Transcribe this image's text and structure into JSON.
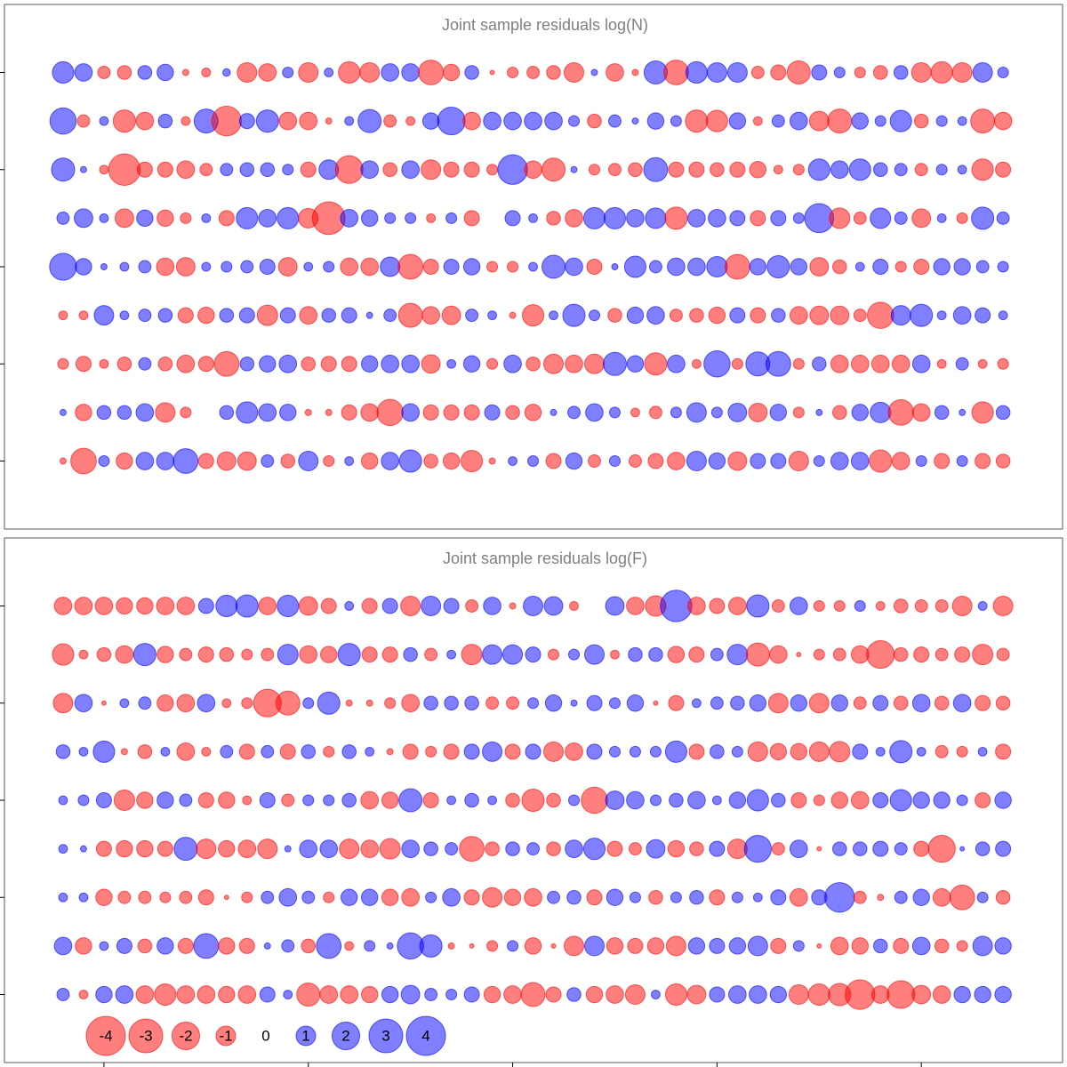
{
  "chart_data": [
    {
      "type": "bubble",
      "title": "Joint sample residuals log(N)",
      "x": [
        1,
        2,
        3,
        4,
        5,
        6,
        7,
        8,
        9,
        10,
        11,
        12,
        13,
        14,
        15,
        16,
        17,
        18,
        19,
        20,
        21,
        22,
        23,
        24,
        25,
        26,
        27,
        28,
        29,
        30,
        31,
        32,
        33,
        34,
        35,
        36,
        37,
        38,
        39,
        40,
        41,
        42,
        43,
        44,
        45,
        46,
        47
      ],
      "y": [
        9,
        8,
        7,
        6,
        5,
        4,
        3,
        2,
        1
      ],
      "xlim": [
        -1.87,
        49.91
      ],
      "ylim": [
        -0.4,
        10.4
      ],
      "yticks": [
        1,
        3,
        5,
        7,
        9
      ],
      "colors": {
        "negative": "#ff0000",
        "positive": "#0000ff"
      },
      "values": [
        [
          1.2,
          0.8,
          -0.4,
          -0.5,
          0.5,
          0.7,
          -0.1,
          -0.2,
          0.15,
          -1.0,
          -0.8,
          0.3,
          -1.0,
          0.2,
          -1.2,
          -1.0,
          0.8,
          0.8,
          -1.6,
          -0.7,
          0.5,
          -0.05,
          -0.3,
          -0.4,
          -0.5,
          -1.0,
          0.1,
          -0.8,
          -0.1,
          1.4,
          -1.6,
          1.2,
          1.0,
          1.0,
          -0.4,
          -0.6,
          -1.4,
          0.6,
          0.3,
          -0.3,
          -0.5,
          0.5,
          -1.0,
          -1.2,
          -1.0,
          1.0,
          0.3
        ],
        [
          1.8,
          -0.4,
          0.2,
          -1.3,
          -0.8,
          0.5,
          -0.2,
          1.5,
          -2.3,
          0.6,
          1.3,
          -0.8,
          -0.8,
          -0.1,
          0.2,
          1.4,
          -0.4,
          -0.2,
          0.7,
          2.0,
          -0.8,
          0.8,
          0.8,
          0.8,
          0.8,
          0.3,
          -0.5,
          0.4,
          0.1,
          0.7,
          0.3,
          -1.3,
          -1.2,
          0.7,
          -0.2,
          0.4,
          0.8,
          -1.0,
          -1.5,
          0.7,
          0.3,
          1.2,
          -0.5,
          0.3,
          0.2,
          -1.5,
          -0.8
        ],
        [
          1.4,
          0.1,
          -0.2,
          -2.6,
          -0.6,
          -0.6,
          -0.8,
          -0.4,
          0.4,
          0.5,
          0.5,
          0.3,
          -0.6,
          1.0,
          -2.0,
          0.8,
          -0.5,
          0.8,
          -1.0,
          -0.6,
          -0.6,
          -0.3,
          2.3,
          -0.8,
          -1.4,
          0.1,
          -0.3,
          -0.4,
          -0.5,
          1.5,
          -0.6,
          -0.6,
          -0.5,
          -0.6,
          -0.7,
          -0.2,
          -0.3,
          1.2,
          0.8,
          1.2,
          0.5,
          0.4,
          -0.4,
          0.3,
          0.2,
          -1.2,
          -0.6
        ],
        [
          0.4,
          0.9,
          0.2,
          -0.9,
          0.7,
          -0.7,
          -0.3,
          0.2,
          -0.6,
          1.2,
          0.8,
          1.2,
          -1.0,
          -2.8,
          0.8,
          0.7,
          0.3,
          0.3,
          -0.2,
          0.3,
          -0.6,
          0,
          0.6,
          0.2,
          -0.5,
          -0.8,
          1.2,
          1.2,
          0.8,
          1.1,
          -1.3,
          0.8,
          0.8,
          0.6,
          -0.6,
          0.6,
          0.3,
          2.2,
          -1.1,
          -0.4,
          1.1,
          0.4,
          -0.9,
          0.2,
          -0.3,
          1.3,
          0.4
        ],
        [
          1.9,
          0.7,
          0.1,
          0.2,
          0.4,
          -0.8,
          -0.9,
          0.2,
          0.3,
          0.4,
          0.6,
          -0.9,
          0.2,
          0.3,
          -0.8,
          -0.8,
          1.0,
          -1.6,
          -0.6,
          0.6,
          0.7,
          -0.3,
          -0.3,
          0.2,
          1.4,
          0.8,
          -0.6,
          0.1,
          1.2,
          0.4,
          0.8,
          0.8,
          1.1,
          -1.6,
          0.7,
          1.3,
          0.7,
          -0.9,
          -0.5,
          0.2,
          0.6,
          -0.3,
          -0.6,
          0.7,
          0.7,
          0.4,
          0.3
        ],
        [
          -0.2,
          -0.2,
          1.0,
          0.2,
          0.4,
          0.5,
          -0.6,
          -0.7,
          0.5,
          0.6,
          -1.1,
          0.6,
          -0.8,
          0.5,
          0.6,
          0.1,
          0.4,
          -1.5,
          -0.8,
          -0.9,
          0.4,
          0.2,
          -0.1,
          -1.2,
          0.2,
          1.3,
          0.3,
          -0.5,
          0.7,
          0.8,
          -0.4,
          -0.5,
          -0.7,
          0.6,
          -0.6,
          0.5,
          -0.8,
          -0.9,
          -0.9,
          -0.4,
          -1.8,
          1.0,
          1.3,
          0.2,
          0.8,
          0.6,
          0.2
        ],
        [
          -0.3,
          -0.6,
          -0.2,
          -0.5,
          0.4,
          -0.5,
          -0.8,
          -0.6,
          -1.6,
          0.5,
          0.7,
          0.8,
          -0.5,
          -0.6,
          -0.6,
          0.7,
          0.8,
          0.8,
          -0.9,
          0.2,
          0.7,
          -0.3,
          0.8,
          -0.5,
          -1.0,
          -0.8,
          -1.0,
          1.4,
          0.7,
          -1.3,
          0.8,
          -0.2,
          1.8,
          -0.3,
          1.5,
          1.6,
          -0.3,
          0.5,
          -0.8,
          -0.8,
          -0.8,
          -0.8,
          0.8,
          -0.2,
          0.4,
          -0.2,
          -0.3
        ],
        [
          0.1,
          -0.7,
          0.5,
          0.5,
          0.8,
          -1.0,
          -0.3,
          0,
          0.5,
          1.2,
          0.8,
          0.7,
          -0.1,
          -0.1,
          -0.6,
          -0.8,
          -1.8,
          0.8,
          -0.6,
          -0.6,
          -0.6,
          0.6,
          -0.5,
          -0.7,
          0.1,
          0.4,
          0.8,
          0.3,
          -0.2,
          -0.4,
          0.3,
          1.0,
          0.3,
          0.9,
          -0.9,
          0.7,
          -0.3,
          0.1,
          -0.5,
          0.7,
          1.1,
          -1.7,
          -0.8,
          0.5,
          0.1,
          -1.2,
          0.5
        ],
        [
          -0.1,
          -1.7,
          0.3,
          -0.7,
          0.8,
          0.8,
          1.6,
          -0.6,
          -0.9,
          -0.9,
          0.4,
          -0.5,
          1.0,
          -0.3,
          0.2,
          -0.7,
          0.8,
          1.3,
          -0.5,
          -0.7,
          -1.2,
          -0.1,
          0.2,
          0.3,
          -0.6,
          0.7,
          -0.4,
          0.3,
          -0.4,
          -0.6,
          -0.8,
          1.0,
          0.7,
          -0.9,
          0.6,
          0.6,
          -1.0,
          0.3,
          0.8,
          0.8,
          -1.3,
          -0.8,
          0.3,
          -0.6,
          0.3,
          -0.6,
          -0.5
        ]
      ]
    },
    {
      "type": "bubble",
      "title": "Joint sample residuals log(F)",
      "x": [
        1,
        2,
        3,
        4,
        5,
        6,
        7,
        8,
        9,
        10,
        11,
        12,
        13,
        14,
        15,
        16,
        17,
        18,
        19,
        20,
        21,
        22,
        23,
        24,
        25,
        26,
        27,
        28,
        29,
        30,
        31,
        32,
        33,
        34,
        35,
        36,
        37,
        38,
        39,
        40,
        41,
        42,
        43,
        44,
        45,
        46,
        47
      ],
      "y": [
        9,
        8,
        7,
        6,
        5,
        4,
        3,
        2,
        1
      ],
      "xlim": [
        -1.87,
        49.91
      ],
      "xticks": [
        3,
        13,
        23,
        33,
        43
      ],
      "ylim": [
        -0.4,
        10.4
      ],
      "yticks": [
        1,
        3,
        5,
        7,
        9
      ],
      "colors": {
        "negative": "#ff0000",
        "positive": "#0000ff"
      },
      "legend": {
        "position": "bottom-left",
        "values": [
          -4,
          -3,
          -2,
          -1,
          0,
          1,
          2,
          3,
          4
        ]
      },
      "values": [
        [
          -0.8,
          -0.8,
          -0.8,
          -0.7,
          -0.7,
          -0.8,
          -0.8,
          0.6,
          1.2,
          1.3,
          -0.8,
          1.2,
          -0.9,
          -0.6,
          0.2,
          -0.6,
          0.6,
          -1.0,
          1.0,
          0.6,
          -0.4,
          0.8,
          -0.1,
          1.0,
          0.9,
          -0.2,
          0,
          0.9,
          -0.8,
          -1.1,
          2.6,
          -0.8,
          -0.6,
          -0.8,
          1.3,
          -0.4,
          0.8,
          -0.3,
          -0.3,
          0.3,
          -0.2,
          -0.5,
          -0.4,
          -0.4,
          -1.0,
          0.2,
          -1.0
        ],
        [
          -1.2,
          -0.2,
          -0.5,
          -0.8,
          1.3,
          -0.7,
          -0.4,
          -0.6,
          -0.5,
          -0.3,
          -0.4,
          1.1,
          -0.8,
          -0.7,
          1.3,
          -0.6,
          -0.6,
          0.5,
          -0.4,
          0.2,
          -1.1,
          1.0,
          1.0,
          0.6,
          -0.3,
          0.3,
          1.0,
          -0.2,
          0.5,
          0.5,
          -0.7,
          -0.6,
          0.4,
          1.1,
          -1.4,
          -0.8,
          -0.05,
          -0.3,
          -0.4,
          -0.8,
          -2.0,
          -0.5,
          -0.6,
          -0.4,
          -0.6,
          -1.1,
          -0.4
        ],
        [
          -1.0,
          0.8,
          -0.05,
          0.2,
          0.4,
          -0.7,
          -0.8,
          0.8,
          -0.2,
          -0.3,
          -2.0,
          -1.5,
          0.3,
          1.3,
          -0.1,
          -0.1,
          -0.3,
          -0.8,
          0.5,
          0.5,
          0.5,
          -0.4,
          -0.4,
          0.3,
          0.7,
          0.1,
          0.6,
          0.3,
          0.7,
          -0.05,
          -0.6,
          0.2,
          0.4,
          0.5,
          0.7,
          -1.0,
          0.7,
          -1.0,
          0.7,
          -0.4,
          0.6,
          -0.5,
          0.8,
          -0.5,
          0.8,
          -0.6,
          -0.5
        ],
        [
          0.5,
          0.2,
          1.2,
          -0.1,
          -0.5,
          0.2,
          -0.8,
          -0.2,
          0.4,
          -0.6,
          0.4,
          -0.6,
          0.5,
          -0.3,
          0.5,
          0.2,
          -0.1,
          -0.6,
          -0.3,
          -0.6,
          0.6,
          1.0,
          -0.6,
          0.6,
          -1.0,
          -0.8,
          0.6,
          0.3,
          0.3,
          0.3,
          1.2,
          -0.6,
          0.5,
          0.3,
          -1.0,
          -0.7,
          -0.7,
          -1.0,
          -1.1,
          0.6,
          0.2,
          1.3,
          0.2,
          -0.4,
          -0.3,
          0.2,
          -0.6
        ],
        [
          0.2,
          0.3,
          0.6,
          -1.1,
          -0.7,
          0.7,
          0.4,
          -0.6,
          -0.7,
          -0.2,
          0.6,
          -0.4,
          0.3,
          0.3,
          0.5,
          -0.8,
          -0.7,
          1.4,
          -0.6,
          0.2,
          0.5,
          0.2,
          -0.5,
          -1.3,
          -0.5,
          0.3,
          -1.8,
          0.9,
          0.8,
          0.3,
          0.5,
          0.8,
          0.2,
          0.7,
          1.2,
          0.5,
          -0.6,
          -0.3,
          -0.7,
          -0.8,
          0.6,
          1.2,
          0.7,
          0.7,
          0.3,
          -0.6,
          0.7
        ],
        [
          0.2,
          0.1,
          -0.6,
          -0.7,
          -0.7,
          -0.6,
          1.4,
          -1.0,
          -0.7,
          -0.8,
          -1.0,
          0.1,
          0.8,
          0.8,
          -1.0,
          -0.8,
          -1.1,
          0.8,
          0.5,
          0.4,
          -1.6,
          -0.5,
          0.5,
          0.4,
          -0.5,
          0.8,
          1.2,
          -0.6,
          -0.4,
          0.9,
          -0.7,
          -0.5,
          0.6,
          -1.0,
          1.9,
          -0.4,
          0.8,
          -0.05,
          0.5,
          0.5,
          0.6,
          0.4,
          -0.6,
          -1.9,
          0.05,
          0.5,
          0.6
        ],
        [
          0.2,
          0.2,
          -0.7,
          -0.4,
          -0.4,
          -0.3,
          -0.4,
          -0.6,
          -0.05,
          -0.3,
          0.4,
          0.8,
          0.4,
          -0.3,
          0.7,
          0.7,
          -0.7,
          -0.8,
          0.3,
          0.8,
          -0.6,
          -1.0,
          -0.7,
          -0.8,
          0.4,
          0.5,
          -0.6,
          0.7,
          0.3,
          -0.5,
          0.3,
          0.5,
          -0.6,
          0.3,
          0.2,
          0.6,
          -0.8,
          0.6,
          2.3,
          -0.4,
          -0.1,
          0.4,
          0.7,
          -0.8,
          -1.6,
          0.3,
          -0.5
        ],
        [
          0.8,
          -0.7,
          0.2,
          0.6,
          -0.5,
          0.7,
          -0.6,
          1.6,
          -0.7,
          -0.6,
          0.1,
          0.4,
          -0.5,
          1.6,
          -0.2,
          0.3,
          0.1,
          1.8,
          1.3,
          -0.1,
          -0.05,
          -0.3,
          0.3,
          -0.7,
          -0.05,
          -1.0,
          1.0,
          -0.7,
          -0.6,
          -0.7,
          -1.0,
          0.7,
          0.6,
          0.7,
          1.0,
          -0.6,
          0.3,
          -0.05,
          -0.8,
          -0.7,
          0.5,
          -0.6,
          0.8,
          -0.5,
          -0.3,
          1.0,
          0.7
        ],
        [
          0.4,
          -0.2,
          0.7,
          0.8,
          -0.8,
          -1.2,
          -0.8,
          -0.8,
          -0.7,
          -0.8,
          0.6,
          0.2,
          -1.4,
          -0.8,
          -0.8,
          -0.7,
          0.7,
          0.9,
          0.4,
          0.3,
          0.6,
          -0.7,
          -0.8,
          -1.5,
          -0.6,
          0.5,
          -0.7,
          -0.8,
          -1.0,
          0.2,
          -1.2,
          -0.9,
          0.6,
          0.8,
          0.8,
          0.7,
          -1.0,
          -1.2,
          -1.3,
          -2.3,
          -0.8,
          -2.0,
          -0.9,
          -0.8,
          0.7,
          0.7,
          0.7
        ]
      ]
    }
  ]
}
